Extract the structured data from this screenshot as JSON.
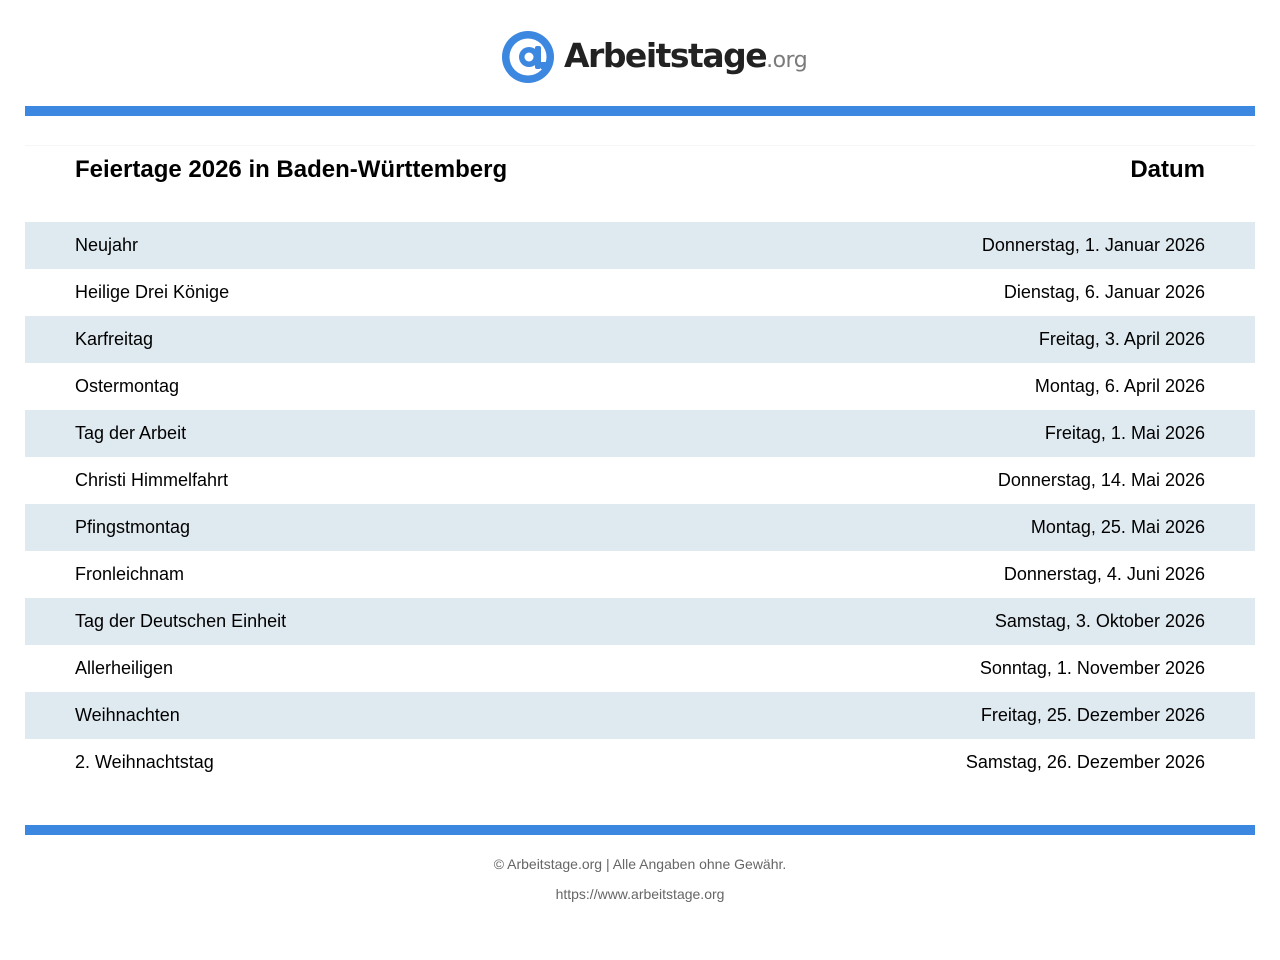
{
  "brand": {
    "logo_icon": "at-sign-icon",
    "name": "Arbeitstage",
    "tld": ".org",
    "accent_color": "#3c87e0",
    "row_shade_color": "#dfe9f0"
  },
  "table": {
    "title": "Feiertage 2026 in Baden-Württemberg",
    "date_header": "Datum",
    "rows": [
      {
        "name": "Neujahr",
        "date": "Donnerstag, 1. Januar 2026"
      },
      {
        "name": "Heilige Drei Könige",
        "date": "Dienstag, 6. Januar 2026"
      },
      {
        "name": "Karfreitag",
        "date": "Freitag, 3. April 2026"
      },
      {
        "name": "Ostermontag",
        "date": "Montag, 6. April 2026"
      },
      {
        "name": "Tag der Arbeit",
        "date": "Freitag, 1. Mai 2026"
      },
      {
        "name": "Christi Himmelfahrt",
        "date": "Donnerstag, 14. Mai 2026"
      },
      {
        "name": "Pfingstmontag",
        "date": "Montag, 25. Mai 2026"
      },
      {
        "name": "Fronleichnam",
        "date": "Donnerstag, 4. Juni 2026"
      },
      {
        "name": "Tag der Deutschen Einheit",
        "date": "Samstag, 3. Oktober 2026"
      },
      {
        "name": "Allerheiligen",
        "date": "Sonntag, 1. November 2026"
      },
      {
        "name": "Weihnachten",
        "date": "Freitag, 25. Dezember 2026"
      },
      {
        "name": "2. Weihnachtstag",
        "date": "Samstag, 26. Dezember 2026"
      }
    ]
  },
  "footer": {
    "copyright": "© Arbeitstage.org | Alle Angaben ohne Gewähr.",
    "url": "https://www.arbeitstage.org"
  }
}
